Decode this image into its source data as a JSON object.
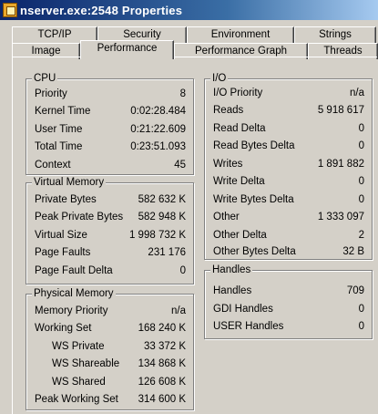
{
  "window": {
    "title": "nserver.exe:2548 Properties",
    "icon": "process-icon"
  },
  "tabs_row1": [
    {
      "label": "TCP/IP"
    },
    {
      "label": "Security"
    },
    {
      "label": "Environment"
    },
    {
      "label": "Strings"
    }
  ],
  "tabs_row2": [
    {
      "label": "Image"
    },
    {
      "label": "Performance"
    },
    {
      "label": "Performance Graph"
    },
    {
      "label": "Threads"
    }
  ],
  "active_tab": "Performance",
  "cpu": {
    "title": "CPU",
    "rows": [
      {
        "label": "Priority",
        "value": "8"
      },
      {
        "label": "Kernel Time",
        "value": "0:02:28.484"
      },
      {
        "label": "User Time",
        "value": "0:21:22.609"
      },
      {
        "label": "Total Time",
        "value": "0:23:51.093"
      },
      {
        "label": "Context",
        "value": "45"
      }
    ]
  },
  "virtual_memory": {
    "title": "Virtual Memory",
    "rows": [
      {
        "label": "Private Bytes",
        "value": "582 632 K"
      },
      {
        "label": "Peak Private Bytes",
        "value": "582 948 K"
      },
      {
        "label": "Virtual Size",
        "value": "1 998 732 K"
      },
      {
        "label": "Page Faults",
        "value": "231 176"
      },
      {
        "label": "Page Fault Delta",
        "value": "0"
      }
    ]
  },
  "physical_memory": {
    "title": "Physical Memory",
    "rows": [
      {
        "label": "Memory Priority",
        "value": "n/a"
      },
      {
        "label": "Working Set",
        "value": "168 240 K"
      },
      {
        "label": "WS Private",
        "value": "33 372 K"
      },
      {
        "label": "WS Shareable",
        "value": "134 868 K"
      },
      {
        "label": "WS Shared",
        "value": "126 608 K"
      },
      {
        "label": "Peak Working Set",
        "value": "314 600 K"
      }
    ]
  },
  "io": {
    "title": "I/O",
    "rows": [
      {
        "label": "I/O Priority",
        "value": "n/a"
      },
      {
        "label": "Reads",
        "value": "5 918 617"
      },
      {
        "label": "Read Delta",
        "value": "0"
      },
      {
        "label": "Read Bytes Delta",
        "value": "0"
      },
      {
        "label": "Writes",
        "value": "1 891 882"
      },
      {
        "label": "Write Delta",
        "value": "0"
      },
      {
        "label": "Write Bytes Delta",
        "value": "0"
      },
      {
        "label": "Other",
        "value": "1 333 097"
      },
      {
        "label": "Other Delta",
        "value": "2"
      },
      {
        "label": "Other Bytes Delta",
        "value": "32 B"
      }
    ]
  },
  "handles": {
    "title": "Handles",
    "rows": [
      {
        "label": "Handles",
        "value": "709"
      },
      {
        "label": "GDI Handles",
        "value": "0"
      },
      {
        "label": "USER Handles",
        "value": "0"
      }
    ]
  }
}
